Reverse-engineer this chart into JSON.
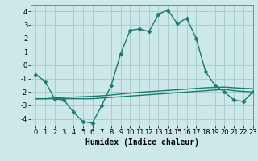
{
  "title": "",
  "xlabel": "Humidex (Indice chaleur)",
  "ylabel": "",
  "background_color": "#cce8e8",
  "grid_color": "#aacccc",
  "line_color": "#1a7a6e",
  "x_values": [
    0,
    1,
    2,
    3,
    4,
    5,
    6,
    7,
    8,
    9,
    10,
    11,
    12,
    13,
    14,
    15,
    16,
    17,
    18,
    19,
    20,
    21,
    22,
    23
  ],
  "line1_y": [
    -0.7,
    -1.2,
    -2.5,
    -2.6,
    -3.5,
    -4.2,
    -4.3,
    -3.0,
    -1.5,
    0.85,
    2.6,
    2.7,
    2.5,
    3.8,
    4.1,
    3.1,
    3.5,
    2.0,
    -0.5,
    -1.5,
    -2.0,
    -2.6,
    -2.7,
    -2.0
  ],
  "line2_y": [
    -2.5,
    -2.5,
    -2.5,
    -2.5,
    -2.5,
    -2.5,
    -2.5,
    -2.45,
    -2.4,
    -2.35,
    -2.3,
    -2.25,
    -2.2,
    -2.15,
    -2.1,
    -2.05,
    -2.0,
    -1.95,
    -1.9,
    -1.85,
    -1.8,
    -1.9,
    -1.95,
    -2.0
  ],
  "line3_y": [
    -2.5,
    -2.5,
    -2.45,
    -2.4,
    -2.38,
    -2.35,
    -2.32,
    -2.28,
    -2.22,
    -2.15,
    -2.08,
    -2.02,
    -1.97,
    -1.92,
    -1.88,
    -1.83,
    -1.78,
    -1.73,
    -1.68,
    -1.65,
    -1.63,
    -1.68,
    -1.72,
    -1.75
  ],
  "ylim": [
    -4.5,
    4.5
  ],
  "xlim": [
    -0.5,
    23
  ],
  "yticks": [
    -4,
    -3,
    -2,
    -1,
    0,
    1,
    2,
    3,
    4
  ],
  "xticks": [
    0,
    1,
    2,
    3,
    4,
    5,
    6,
    7,
    8,
    9,
    10,
    11,
    12,
    13,
    14,
    15,
    16,
    17,
    18,
    19,
    20,
    21,
    22,
    23
  ],
  "marker": "D",
  "marker_size": 2.5,
  "line_width": 1.0,
  "xlabel_fontsize": 7,
  "tick_fontsize": 6
}
